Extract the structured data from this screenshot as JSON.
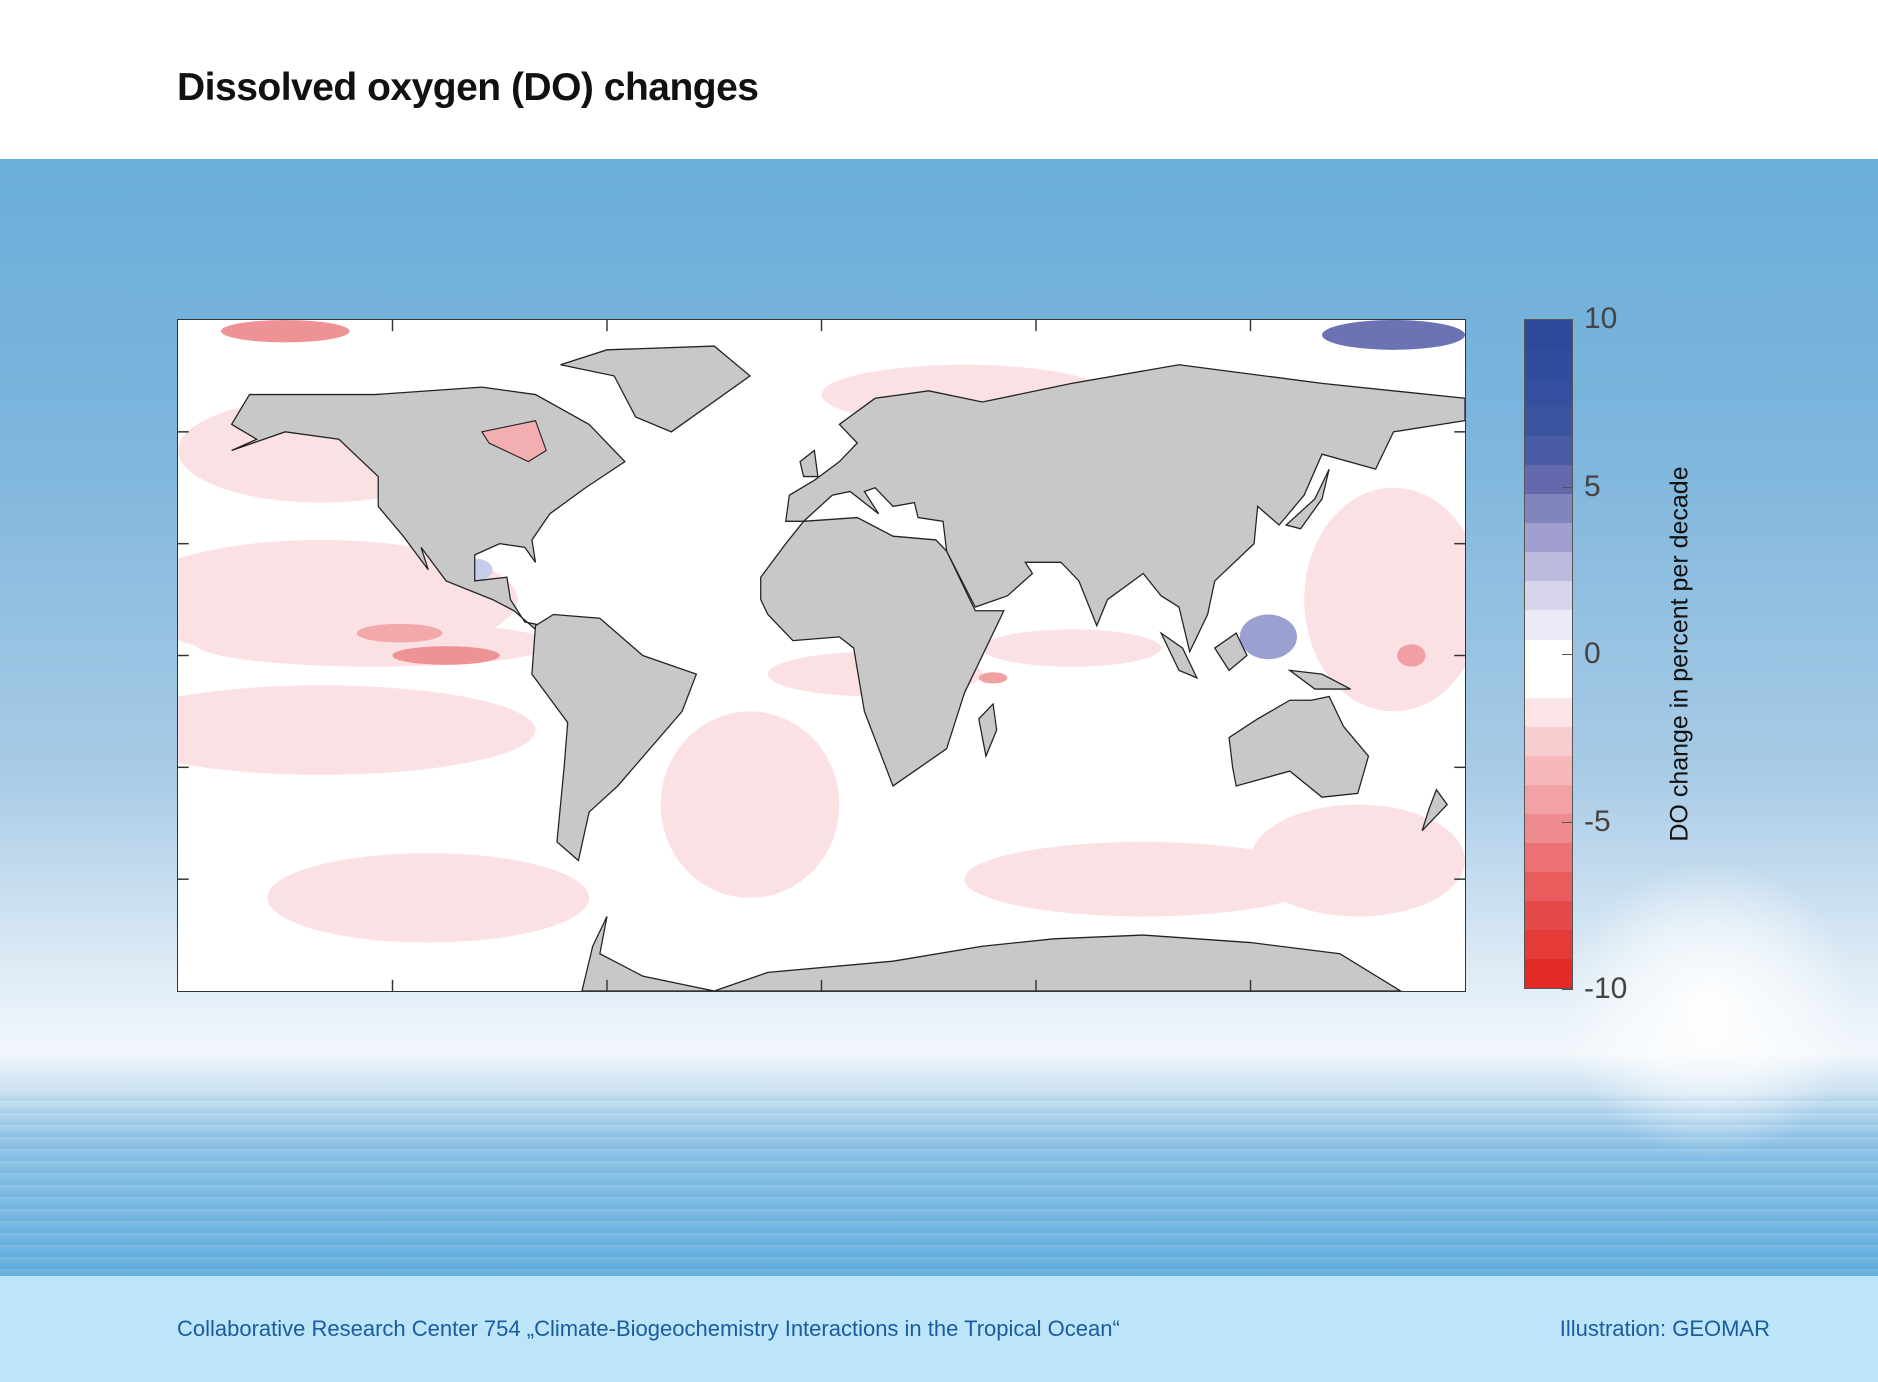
{
  "header": {
    "title": "Dissolved oxygen (DO) changes"
  },
  "map": {
    "land_color": "#c8c8c8",
    "ocean_color": "#ffffff",
    "lon_ticks": [
      -120,
      -60,
      0,
      60,
      120
    ],
    "lat_ticks": [
      60,
      30,
      0,
      -30,
      -60
    ]
  },
  "colorbar": {
    "title": "DO change in percent per decade",
    "range": [
      -10,
      10
    ],
    "tick_labels": [
      "10",
      "5",
      "0",
      "-5",
      "-10"
    ],
    "tick_values": [
      10,
      5,
      0,
      -5,
      -10
    ],
    "colors": [
      "#2b4a9a",
      "#2f4d9c",
      "#344f9d",
      "#3c54a0",
      "#4a5ca5",
      "#6469ad",
      "#8184bd",
      "#a19fcd",
      "#bcbadd",
      "#d7d5ec",
      "#eceaf6",
      "#ffffff",
      "#ffffff",
      "#fbe4e6",
      "#f8cdd0",
      "#f5b8bb",
      "#f2a2a5",
      "#ef8b8e",
      "#ec7174",
      "#e95c5e",
      "#e6494a",
      "#e43a38",
      "#e32b26"
    ]
  },
  "footer": {
    "credit": "Collaborative Research Center 754 „Climate-Biogeochemistry Interactions in the Tropical Ocean“",
    "illustration": "Illustration: GEOMAR"
  }
}
